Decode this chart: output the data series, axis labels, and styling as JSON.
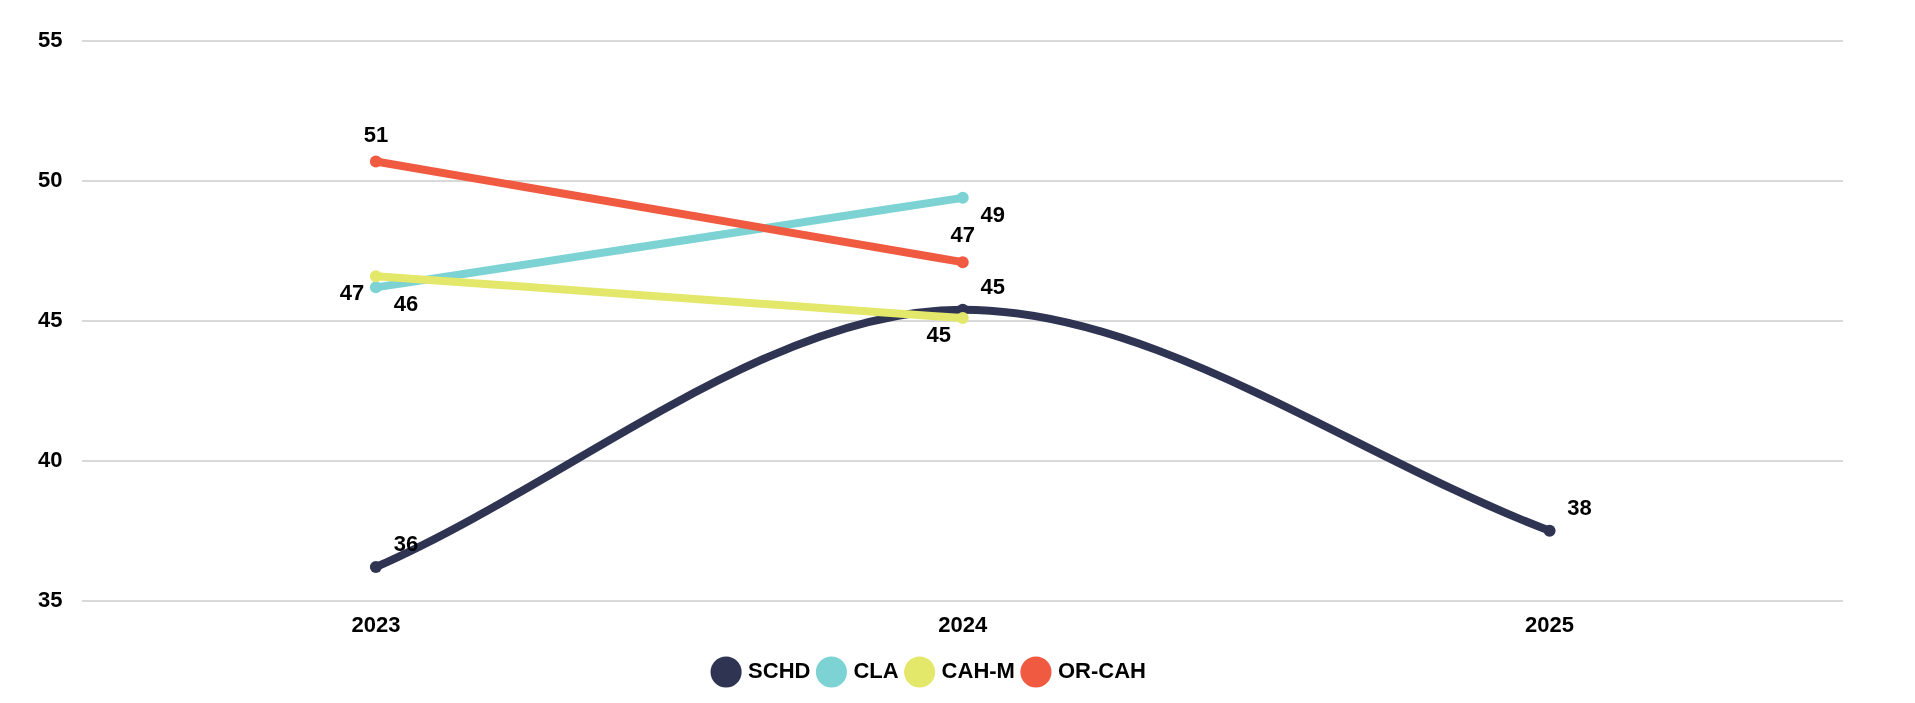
{
  "chart_data": {
    "type": "line",
    "categories": [
      "2023",
      "2024",
      "2025"
    ],
    "series": [
      {
        "name": "SCHD",
        "color": "#2e3452",
        "values": [
          36.2,
          45.4,
          37.5
        ],
        "value_labels": [
          "36",
          "45",
          "38"
        ]
      },
      {
        "name": "CLA",
        "color": "#7dd3d3",
        "values": [
          46.2,
          49.4,
          null
        ],
        "value_labels": [
          "46",
          "49",
          null
        ]
      },
      {
        "name": "CAH-M",
        "color": "#e3e86a",
        "values": [
          46.6,
          45.1,
          null
        ],
        "value_labels": [
          "47",
          "45",
          null
        ]
      },
      {
        "name": "OR-CAH",
        "color": "#f05a40",
        "values": [
          50.7,
          47.1,
          null
        ],
        "value_labels": [
          "51",
          "47",
          null
        ]
      }
    ],
    "ylim": [
      35,
      55
    ],
    "yticks": [
      35,
      40,
      45,
      50,
      55
    ],
    "grid": "y",
    "legend": "bottom",
    "marker": "circle",
    "line_style": "solid"
  }
}
